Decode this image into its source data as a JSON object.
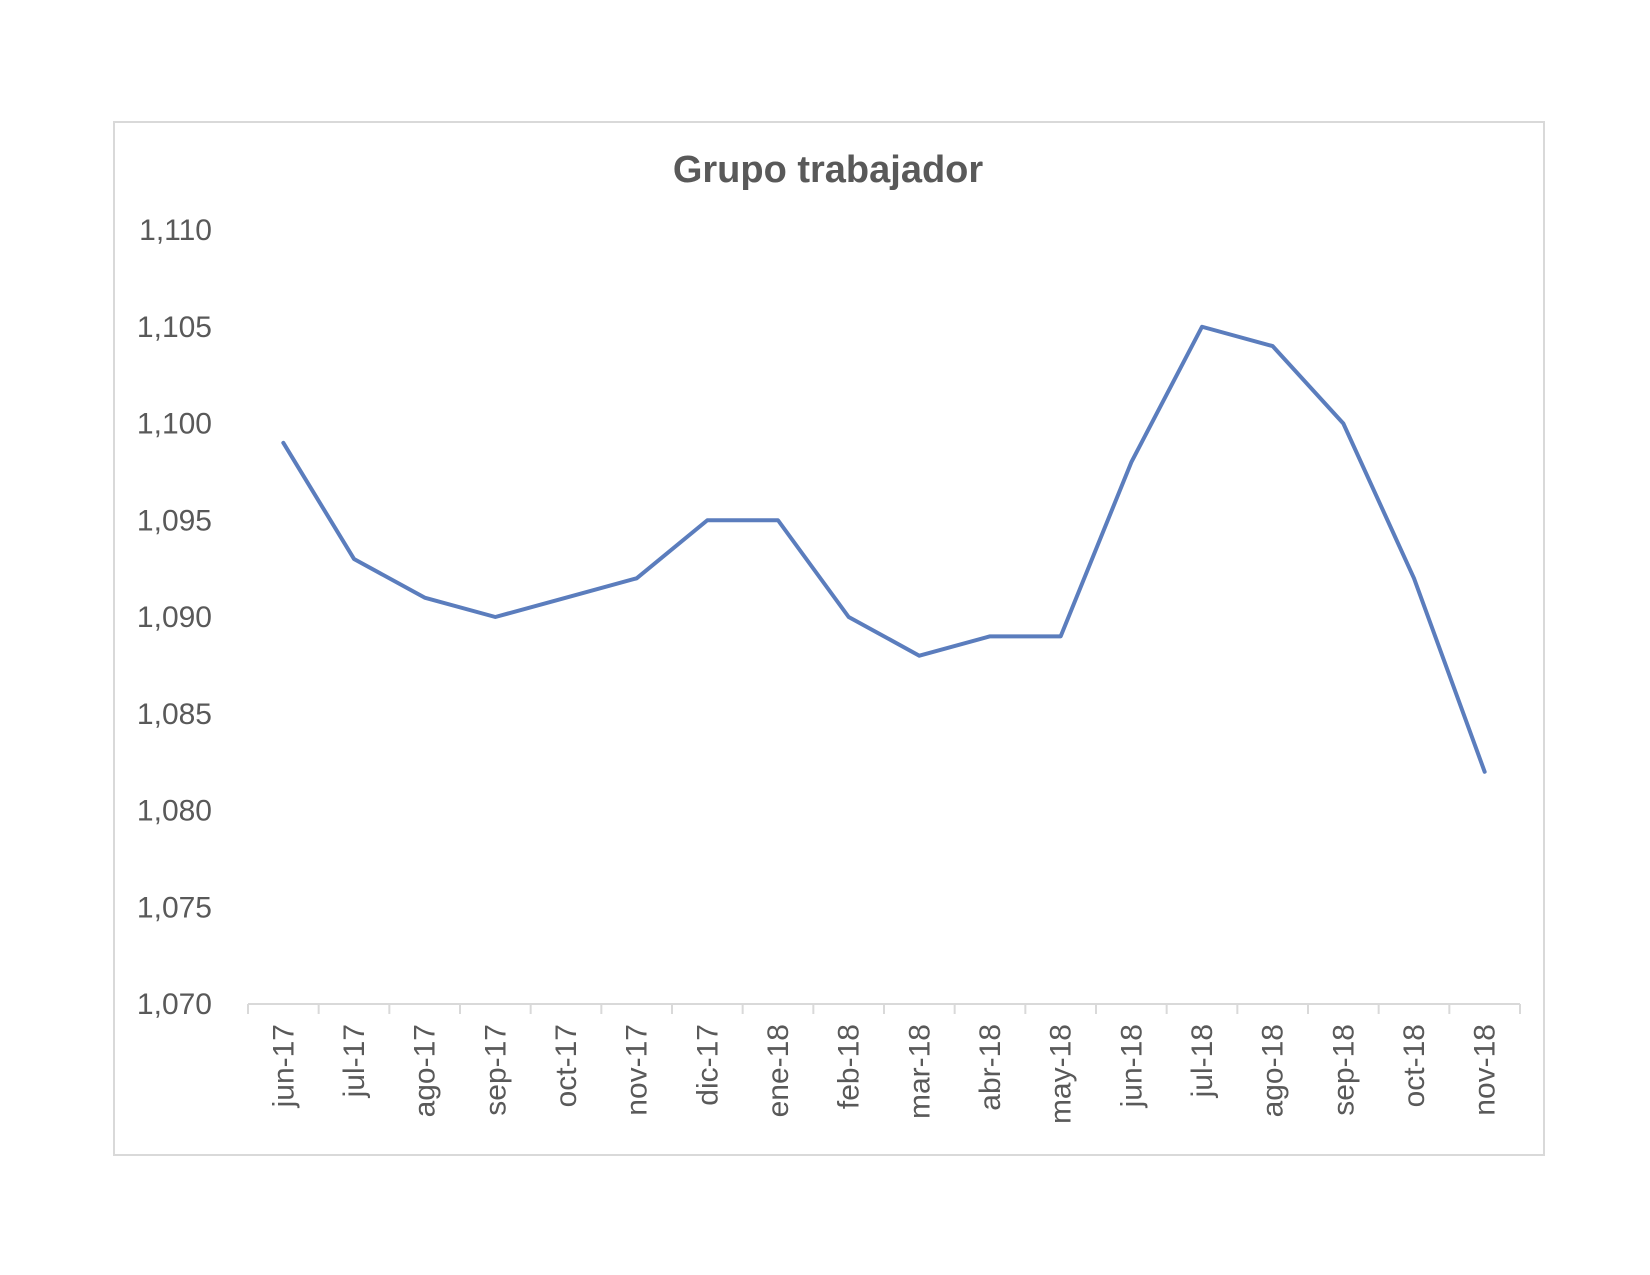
{
  "chart_data": {
    "type": "line",
    "title": "Grupo trabajador",
    "xlabel": "",
    "ylabel": "",
    "categories": [
      "jun-17",
      "jul-17",
      "ago-17",
      "sep-17",
      "oct-17",
      "nov-17",
      "dic-17",
      "ene-18",
      "feb-18",
      "mar-18",
      "abr-18",
      "may-18",
      "jun-18",
      "jul-18",
      "ago-18",
      "sep-18",
      "oct-18",
      "nov-18"
    ],
    "series": [
      {
        "values": [
          1099,
          1093,
          1091,
          1090,
          1091,
          1092,
          1095,
          1095,
          1090,
          1088,
          1089,
          1089,
          1098,
          1105,
          1104,
          1100,
          1092,
          1082
        ],
        "color": "#5b7dbd"
      }
    ],
    "ylim": [
      1070,
      1110
    ],
    "yticks": [
      1070,
      1075,
      1080,
      1085,
      1090,
      1095,
      1100,
      1105,
      1110
    ],
    "ytick_labels": [
      "1,070",
      "1,075",
      "1,080",
      "1,085",
      "1,090",
      "1,095",
      "1,100",
      "1,105",
      "1,110"
    ],
    "grid": false,
    "legend": "none"
  }
}
